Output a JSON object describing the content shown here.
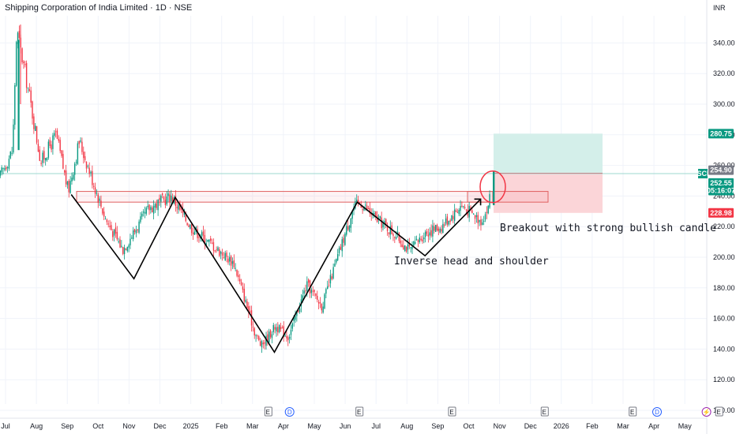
{
  "header": {
    "title": "Shipping Corporation of India Limited · 1D · NSE"
  },
  "currency": "INR",
  "colors": {
    "up": "#089981",
    "down": "#F23645",
    "target_zone": "#D4EFEA",
    "stop_zone": "#FBD5D8",
    "target_tag": "#089981",
    "stop_tag": "#F23645",
    "price_tag": "#089981",
    "prev_tag": "#787B86",
    "resistance": "#E06060",
    "pattern_line": "#000000"
  },
  "price_tags": {
    "target": "280.75",
    "prev_close": "254.90",
    "last": "252.55",
    "countdown": "05:16:07",
    "stop": "228.98",
    "symbol": "SCI"
  },
  "annotations": {
    "breakout": "Breakout with strong bullish candle",
    "pattern": "Inverse head and shoulder"
  },
  "events": [
    {
      "type": "earnings",
      "label": "E",
      "month": 8.5
    },
    {
      "type": "dividend",
      "label": "D",
      "month": 9.2
    },
    {
      "type": "earnings",
      "label": "E",
      "month": 11.45
    },
    {
      "type": "earnings",
      "label": "E",
      "month": 14.45
    },
    {
      "type": "earnings",
      "label": "E",
      "month": 17.45
    },
    {
      "type": "earnings",
      "label": "E",
      "month": 20.3
    },
    {
      "type": "dividend",
      "label": "D",
      "month": 21.1
    },
    {
      "type": "split",
      "label": "⚡",
      "month": 22.7
    },
    {
      "type": "earnings",
      "label": "E",
      "month": 23.1
    }
  ],
  "chart_data": {
    "type": "candlestick",
    "title": "Shipping Corporation of India Limited · 1D · NSE",
    "currency": "INR",
    "x_axis": {
      "ticks": [
        "Jul",
        "Aug",
        "Sep",
        "Oct",
        "Nov",
        "Dec",
        "2025",
        "Feb",
        "Mar",
        "Apr",
        "May",
        "Jun",
        "Jul",
        "Aug",
        "Sep",
        "Oct",
        "Nov",
        "Dec",
        "2026",
        "Feb",
        "Mar",
        "Apr",
        "May"
      ],
      "range": [
        "2024-06-25",
        "2026-05-31"
      ]
    },
    "y_axis": {
      "ticks": [
        100,
        120,
        140,
        160,
        180,
        200,
        220,
        240,
        260,
        280,
        300,
        320,
        340
      ],
      "range": [
        98,
        355
      ]
    },
    "price_path": [
      {
        "date": "2024-06-25",
        "close": 252
      },
      {
        "date": "2024-07-08",
        "close": 270
      },
      {
        "date": "2024-07-12",
        "close": 348
      },
      {
        "date": "2024-07-22",
        "close": 315
      },
      {
        "date": "2024-08-05",
        "close": 262
      },
      {
        "date": "2024-08-20",
        "close": 280
      },
      {
        "date": "2024-09-01",
        "close": 243
      },
      {
        "date": "2024-09-12",
        "close": 276
      },
      {
        "date": "2024-10-08",
        "close": 225
      },
      {
        "date": "2024-10-25",
        "close": 205
      },
      {
        "date": "2024-11-20",
        "close": 232
      },
      {
        "date": "2024-12-12",
        "close": 240
      },
      {
        "date": "2024-12-31",
        "close": 220
      },
      {
        "date": "2025-02-12",
        "close": 196
      },
      {
        "date": "2025-03-05",
        "close": 150
      },
      {
        "date": "2025-03-11",
        "close": 142
      },
      {
        "date": "2025-03-25",
        "close": 155
      },
      {
        "date": "2025-04-07",
        "close": 148
      },
      {
        "date": "2025-04-25",
        "close": 182
      },
      {
        "date": "2025-05-10",
        "close": 168
      },
      {
        "date": "2025-06-10",
        "close": 232
      },
      {
        "date": "2025-06-17",
        "close": 236
      },
      {
        "date": "2025-07-01",
        "close": 226
      },
      {
        "date": "2025-07-20",
        "close": 216
      },
      {
        "date": "2025-08-05",
        "close": 204
      },
      {
        "date": "2025-08-20",
        "close": 216
      },
      {
        "date": "2025-09-05",
        "close": 220
      },
      {
        "date": "2025-09-25",
        "close": 234
      },
      {
        "date": "2025-10-14",
        "close": 224
      },
      {
        "date": "2025-10-22",
        "close": 232
      },
      {
        "date": "2025-10-24",
        "close": 252.55
      }
    ],
    "levels": {
      "resistance_zone": [
        236,
        243
      ],
      "breakout_zone": [
        236,
        240
      ],
      "target": 280.75,
      "entry": 254.9,
      "stop": 228.98,
      "last": 252.55
    },
    "pattern_lines": [
      [
        [
          "2024-09-04",
          241
        ],
        [
          "2024-11-05",
          186
        ],
        [
          "2024-12-16",
          239
        ],
        [
          "2025-03-24",
          138
        ],
        [
          "2025-06-14",
          236
        ],
        [
          "2025-08-20",
          201
        ],
        [
          "2025-10-14",
          238
        ]
      ]
    ],
    "annotations": [
      "Breakout with strong bullish candle",
      "Inverse head and shoulder"
    ]
  }
}
